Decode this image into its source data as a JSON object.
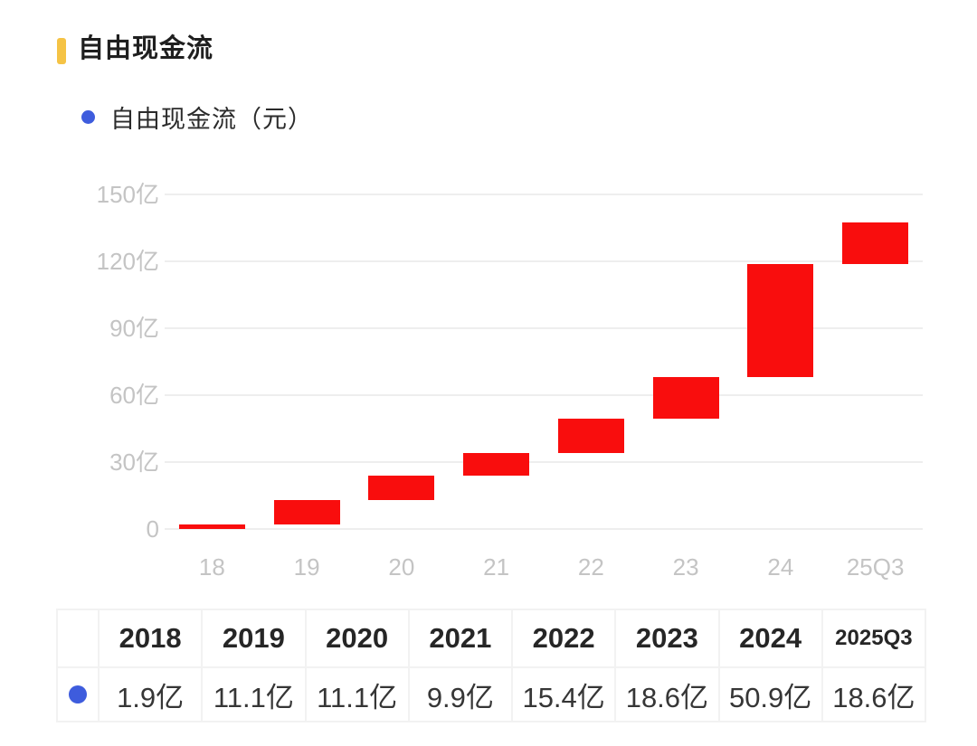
{
  "page": {
    "title": "自由现金流",
    "accent_color": "#f5c345"
  },
  "legend": {
    "label": "自由现金流（元）",
    "dot_color": "#3e5cdd"
  },
  "chart_data": {
    "type": "bar",
    "subtype": "waterfall",
    "title": "自由现金流",
    "legend": "自由现金流（元）",
    "categories": [
      "18",
      "19",
      "20",
      "21",
      "22",
      "23",
      "24",
      "25Q3"
    ],
    "values": [
      1.9,
      11.1,
      11.1,
      9.9,
      15.4,
      18.6,
      50.9,
      18.6
    ],
    "cumulative_start": [
      0,
      1.9,
      13.0,
      24.1,
      34.0,
      49.4,
      68.0,
      118.9
    ],
    "cumulative_end": [
      1.9,
      13.0,
      24.1,
      34.0,
      49.4,
      68.0,
      118.9,
      137.5
    ],
    "ylim": [
      0,
      150
    ],
    "y_ticks": [
      {
        "value": 0,
        "label": "0"
      },
      {
        "value": 30,
        "label": "30亿"
      },
      {
        "value": 60,
        "label": "60亿"
      },
      {
        "value": 90,
        "label": "90亿"
      },
      {
        "value": 120,
        "label": "120亿"
      },
      {
        "value": 150,
        "label": "150亿"
      }
    ],
    "bar_color": "#f90d0d",
    "grid": true,
    "gridline_color": "#eeeeee",
    "axis_label_color": "#c4c4c4",
    "legend_position": "top-left"
  },
  "table": {
    "headers": [
      "2018",
      "2019",
      "2020",
      "2021",
      "2022",
      "2023",
      "2024",
      "2025Q3"
    ],
    "series_dot_color": "#3e5cdd",
    "values": [
      "1.9亿",
      "11.1亿",
      "11.1亿",
      "9.9亿",
      "15.4亿",
      "18.6亿",
      "50.9亿",
      "18.6亿"
    ]
  }
}
